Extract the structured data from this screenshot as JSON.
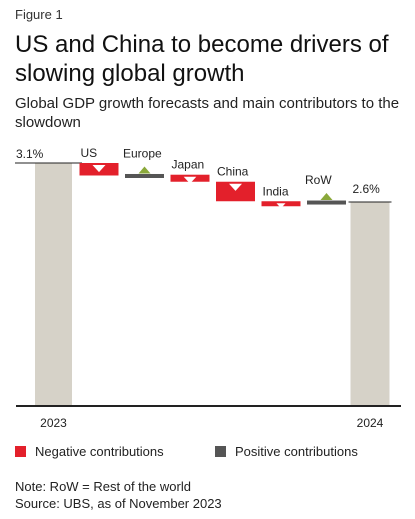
{
  "figure_label": "Figure 1",
  "title": "US and China to become drivers of slowing global growth",
  "subtitle": "Global GDP growth forecasts and main contributors to the slowdown",
  "colors": {
    "total": "#d6d2c8",
    "negative": "#e3202b",
    "positive": "#555555",
    "up_marker": "#8aa83a",
    "down_marker": "#ffffff",
    "axis": "#222222"
  },
  "chart_data": {
    "type": "bar",
    "subtype": "waterfall",
    "categories": [
      "2023",
      "US",
      "Europe",
      "Japan",
      "China",
      "India",
      "RoW",
      "2024"
    ],
    "start": {
      "label": "2023",
      "value": 3.1,
      "value_label": "3.1%"
    },
    "end": {
      "label": "2024",
      "value": 2.6,
      "value_label": "2.6%"
    },
    "contributions": [
      {
        "name": "US",
        "value": -0.16,
        "sign": "negative"
      },
      {
        "name": "Europe",
        "value": 0.01,
        "sign": "positive"
      },
      {
        "name": "Japan",
        "value": -0.09,
        "sign": "negative"
      },
      {
        "name": "China",
        "value": -0.25,
        "sign": "negative"
      },
      {
        "name": "India",
        "value": -0.01,
        "sign": "negative"
      },
      {
        "name": "RoW",
        "value": 0.01,
        "sign": "positive"
      }
    ],
    "ylim": [
      0,
      3.1
    ],
    "grid": false,
    "title": "",
    "xlabel": "",
    "ylabel": ""
  },
  "legend": {
    "negative_label": "Negative contributions",
    "positive_label": "Positive contributions"
  },
  "note": "Note: RoW = Rest of the world",
  "source": "Source: UBS, as of November 2023"
}
